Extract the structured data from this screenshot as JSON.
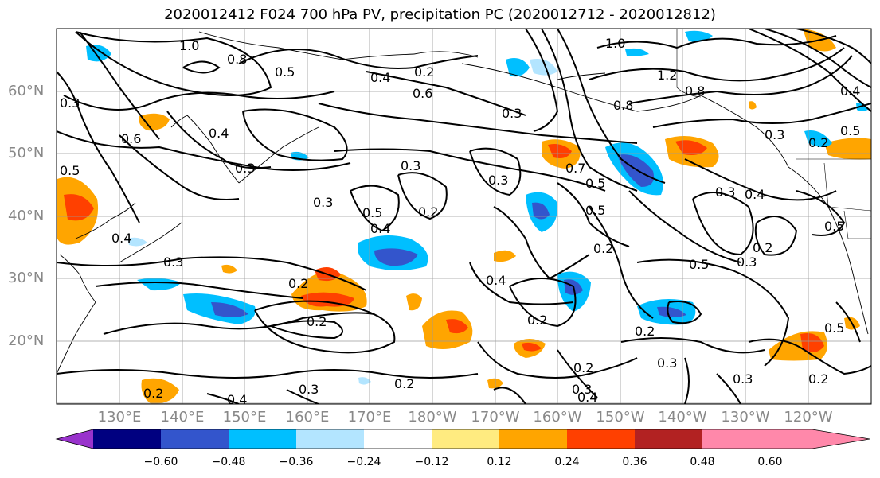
{
  "title": "2020012412 F024 700 hPa PV, precipitation PC (2020012712 - 2020012812)",
  "lat_labels": [
    "60°N",
    "50°N",
    "40°N",
    "30°N",
    "20°N"
  ],
  "lon_labels": [
    "130°E",
    "140°E",
    "150°E",
    "160°E",
    "170°E",
    "180°W",
    "170°W",
    "160°W",
    "150°W",
    "140°W",
    "130°W",
    "120°W"
  ],
  "colorbar": {
    "ticks": [
      "−0.60",
      "−0.48",
      "−0.36",
      "−0.24",
      "−0.12",
      "0.12",
      "0.24",
      "0.36",
      "0.48",
      "0.60"
    ],
    "colors": [
      "#9933cc",
      "#000080",
      "#3355cc",
      "#00bfff",
      "#b3e5ff",
      "#ffffff",
      "#ffeb80",
      "#ffa500",
      "#ff4000",
      "#b22222",
      "#ff88aa"
    ]
  },
  "contour_labels": [
    "1.0",
    "0.5",
    "0.4",
    "0.2",
    "0.6",
    "0.3",
    "0.8",
    "1.0",
    "0.3",
    "0.6",
    "0.4",
    "0.3",
    "0.3",
    "0.5",
    "0.4",
    "0.3",
    "0.2",
    "0.3",
    "0.2",
    "0.7",
    "0.5",
    "0.4",
    "0.3",
    "0.5",
    "0.2",
    "0.5",
    "0.3",
    "0.2",
    "0.2",
    "0.2",
    "0.4",
    "0.2",
    "0.3",
    "0.2",
    "0.3",
    "0.4",
    "0.3",
    "0.2",
    "0.3",
    "0.5",
    "0.4",
    "0.2",
    "0.2",
    "0.4",
    "0.3",
    "0.5",
    "0.4",
    "0.8",
    "0.5",
    "0.2",
    "1.2",
    "0.8",
    "0.3",
    "0.5"
  ]
}
